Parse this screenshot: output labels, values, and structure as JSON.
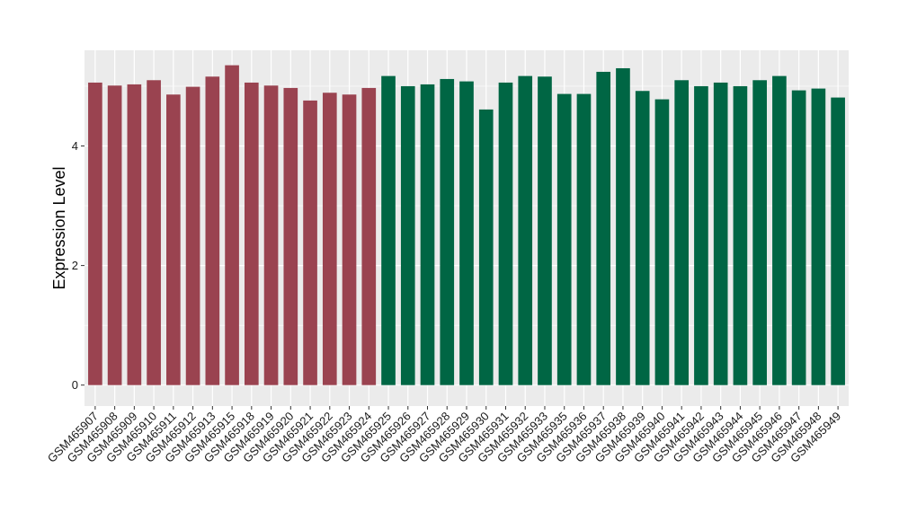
{
  "chart_data": {
    "type": "bar",
    "title": "",
    "xlabel": "",
    "ylabel": "Expression Level",
    "ylim": [
      -0.35,
      5.6
    ],
    "yticks": [
      0,
      2,
      4
    ],
    "grid": true,
    "legend": "none",
    "categories": [
      "GSM465907",
      "GSM465908",
      "GSM465909",
      "GSM465910",
      "GSM465911",
      "GSM465912",
      "GSM465913",
      "GSM465915",
      "GSM465918",
      "GSM465919",
      "GSM465920",
      "GSM465921",
      "GSM465922",
      "GSM465923",
      "GSM465924",
      "GSM465925",
      "GSM465926",
      "GSM465927",
      "GSM465928",
      "GSM465929",
      "GSM465930",
      "GSM465931",
      "GSM465932",
      "GSM465933",
      "GSM465935",
      "GSM465936",
      "GSM465937",
      "GSM465938",
      "GSM465939",
      "GSM465940",
      "GSM465941",
      "GSM465942",
      "GSM465943",
      "GSM465944",
      "GSM465945",
      "GSM465946",
      "GSM465947",
      "GSM465948",
      "GSM465949"
    ],
    "values": [
      5.06,
      5.01,
      5.03,
      5.1,
      4.86,
      4.99,
      5.16,
      5.35,
      5.06,
      5.01,
      4.97,
      4.76,
      4.89,
      4.86,
      4.97,
      5.17,
      5.0,
      5.03,
      5.12,
      5.08,
      4.61,
      5.06,
      5.17,
      5.16,
      4.87,
      4.87,
      5.24,
      5.3,
      4.92,
      4.78,
      5.1,
      5.0,
      5.06,
      5.0,
      5.1,
      5.17,
      4.93,
      4.96,
      4.81
    ],
    "bar_colors": [
      "#9a4350",
      "#9a4350",
      "#9a4350",
      "#9a4350",
      "#9a4350",
      "#9a4350",
      "#9a4350",
      "#9a4350",
      "#9a4350",
      "#9a4350",
      "#9a4350",
      "#9a4350",
      "#9a4350",
      "#9a4350",
      "#9a4350",
      "#006644",
      "#006644",
      "#006644",
      "#006644",
      "#006644",
      "#006644",
      "#006644",
      "#006644",
      "#006644",
      "#006644",
      "#006644",
      "#006644",
      "#006644",
      "#006644",
      "#006644",
      "#006644",
      "#006644",
      "#006644",
      "#006644",
      "#006644",
      "#006644",
      "#006644",
      "#006644",
      "#006644"
    ],
    "panel_color": "#ebebeb",
    "grid_color": "#ffffff"
  }
}
